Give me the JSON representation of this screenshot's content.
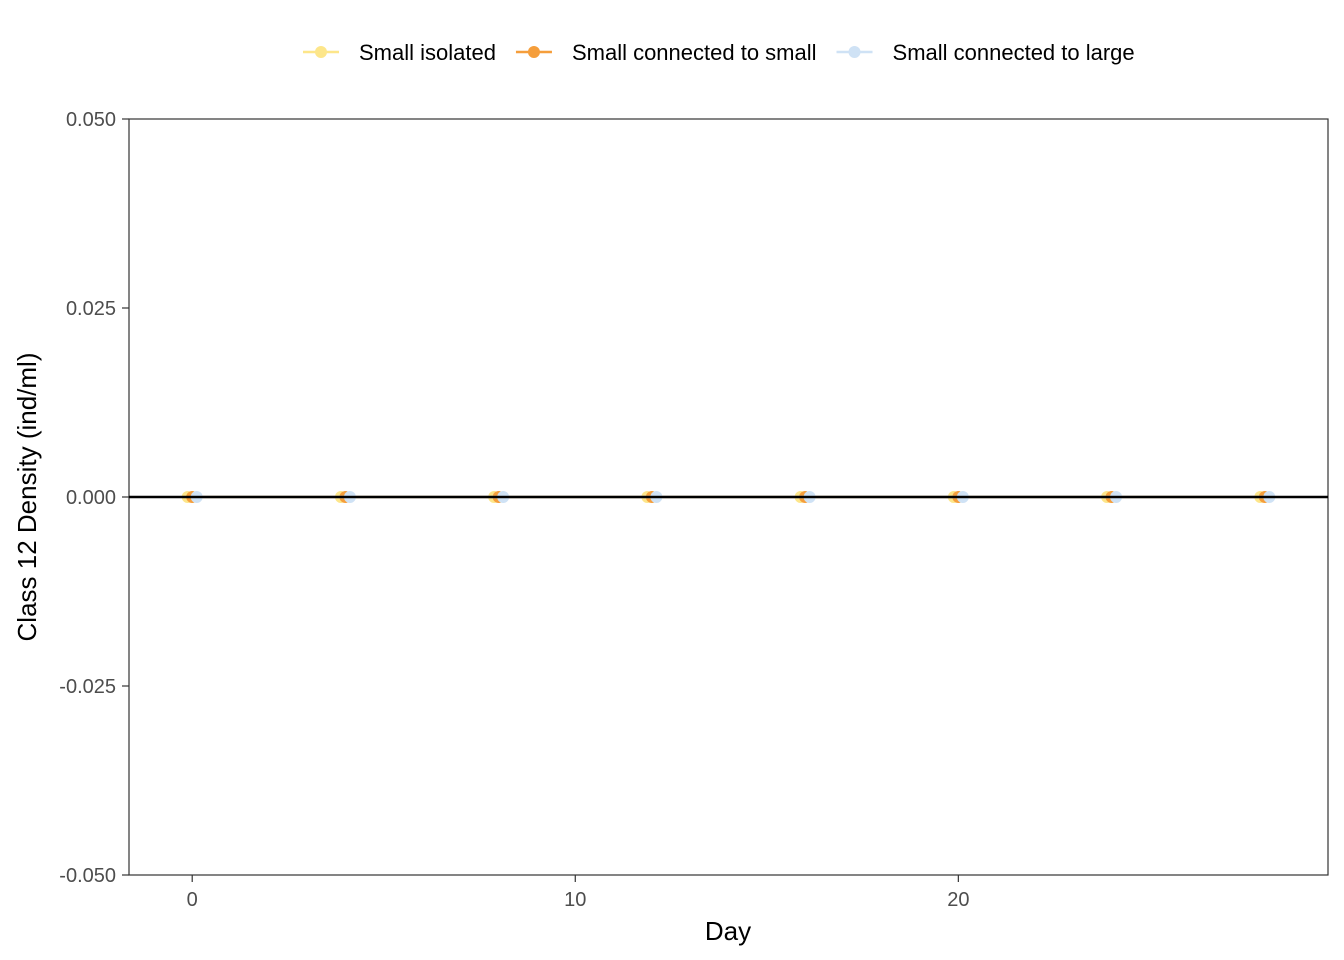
{
  "chart_data": {
    "type": "line",
    "title": "",
    "xlabel": "Day",
    "ylabel": "Class 12 Density (ind/ml)",
    "xlim": [
      -1.65,
      29.65
    ],
    "ylim": [
      -0.05,
      0.05
    ],
    "xticks": [
      0,
      10,
      20
    ],
    "xtick_labels": [
      "0",
      "10",
      "20"
    ],
    "yticks": [
      -0.05,
      -0.025,
      0,
      0.025,
      0.05
    ],
    "ytick_labels": [
      "-0.050",
      "-0.025",
      "0.000",
      "0.025",
      "0.050"
    ],
    "grid": false,
    "legend_position": "top",
    "reference_line": {
      "y": 0,
      "color": "#000000"
    },
    "x": [
      0,
      4,
      8,
      12,
      16,
      20,
      24,
      28
    ],
    "series": [
      {
        "name": "Small isolated",
        "color": "#fde68a",
        "values": [
          0,
          0,
          0,
          0,
          0,
          0,
          0,
          0
        ]
      },
      {
        "name": "Small connected to small",
        "color": "#f59e3b",
        "values": [
          0,
          0,
          0,
          0,
          0,
          0,
          0,
          0
        ]
      },
      {
        "name": "Small connected to large",
        "color": "#cfe2f5",
        "values": [
          0,
          0,
          0,
          0,
          0,
          0,
          0,
          0
        ]
      }
    ]
  }
}
